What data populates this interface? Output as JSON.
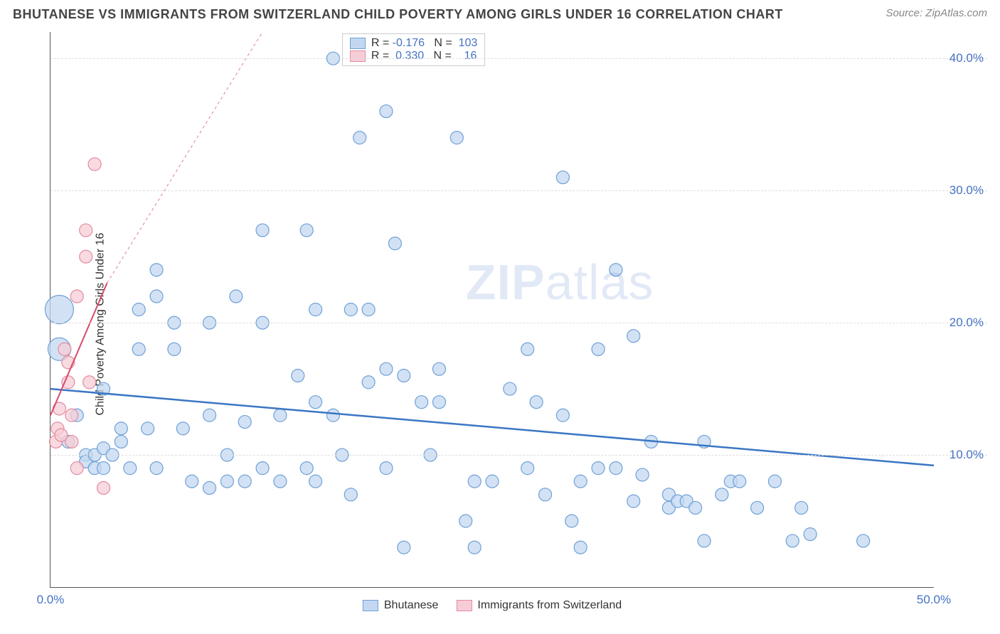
{
  "header": {
    "title": "BHUTANESE VS IMMIGRANTS FROM SWITZERLAND CHILD POVERTY AMONG GIRLS UNDER 16 CORRELATION CHART",
    "source": "Source: ZipAtlas.com"
  },
  "chart": {
    "type": "scatter",
    "ylabel": "Child Poverty Among Girls Under 16",
    "xlim": [
      0,
      50
    ],
    "ylim": [
      0,
      42
    ],
    "yticks": [
      10,
      20,
      30,
      40
    ],
    "ytick_labels": [
      "10.0%",
      "20.0%",
      "30.0%",
      "40.0%"
    ],
    "xticks": [
      0,
      50
    ],
    "xtick_labels": [
      "0.0%",
      "50.0%"
    ],
    "background_color": "#ffffff",
    "grid_color": "#dddddd",
    "watermark_text": "ZIPatlas",
    "watermark_color": "#4472c4",
    "series": [
      {
        "name": "Bhutanese",
        "marker_fill": "#c3d8f0",
        "marker_stroke": "#6fa0d8",
        "marker_opacity": 0.75,
        "marker_radius": 9,
        "line_color": "#3a76c4",
        "line_width": 2.5,
        "line_dash": "none",
        "trend": {
          "x1": 0,
          "y1": 15.0,
          "x2": 50,
          "y2": 9.2
        },
        "R": "-0.176",
        "N": "103",
        "points": [
          [
            0.5,
            21,
            20
          ],
          [
            0.5,
            18,
            16
          ],
          [
            1,
            11
          ],
          [
            1.5,
            13
          ],
          [
            2,
            10
          ],
          [
            2,
            9.5
          ],
          [
            2.5,
            10
          ],
          [
            2.5,
            9
          ],
          [
            3,
            15
          ],
          [
            3,
            10.5
          ],
          [
            3,
            9
          ],
          [
            3.5,
            10
          ],
          [
            4,
            12
          ],
          [
            4,
            11
          ],
          [
            4.5,
            9
          ],
          [
            5,
            21
          ],
          [
            5,
            18
          ],
          [
            5.5,
            12
          ],
          [
            6,
            24
          ],
          [
            6,
            22
          ],
          [
            6,
            9
          ],
          [
            7,
            20
          ],
          [
            7,
            18
          ],
          [
            7.5,
            12
          ],
          [
            8,
            8
          ],
          [
            9,
            20
          ],
          [
            9,
            13
          ],
          [
            9,
            7.5
          ],
          [
            10,
            10
          ],
          [
            10,
            8
          ],
          [
            10.5,
            22
          ],
          [
            11,
            8
          ],
          [
            11,
            12.5
          ],
          [
            12,
            20
          ],
          [
            12,
            27
          ],
          [
            12,
            9
          ],
          [
            13,
            8
          ],
          [
            13,
            13
          ],
          [
            14,
            16
          ],
          [
            14.5,
            27
          ],
          [
            14.5,
            9
          ],
          [
            15,
            21
          ],
          [
            15,
            14
          ],
          [
            15,
            8
          ],
          [
            16,
            40
          ],
          [
            16,
            13
          ],
          [
            16.5,
            10
          ],
          [
            17,
            21
          ],
          [
            17,
            7
          ],
          [
            17.5,
            34
          ],
          [
            18,
            21
          ],
          [
            18,
            15.5
          ],
          [
            19,
            16.5
          ],
          [
            19,
            36
          ],
          [
            19,
            9
          ],
          [
            19.5,
            26
          ],
          [
            20,
            16
          ],
          [
            20,
            3
          ],
          [
            21,
            14
          ],
          [
            21.5,
            10
          ],
          [
            22,
            16.5
          ],
          [
            22,
            14
          ],
          [
            23,
            34
          ],
          [
            23.5,
            5
          ],
          [
            24,
            8
          ],
          [
            24,
            3
          ],
          [
            25,
            8
          ],
          [
            26,
            15
          ],
          [
            27,
            18
          ],
          [
            27,
            9
          ],
          [
            27.5,
            14
          ],
          [
            28,
            7
          ],
          [
            29,
            31
          ],
          [
            29,
            13
          ],
          [
            29.5,
            5
          ],
          [
            30,
            8
          ],
          [
            30,
            3
          ],
          [
            31,
            18
          ],
          [
            31,
            9
          ],
          [
            32,
            24
          ],
          [
            32,
            9
          ],
          [
            33,
            19
          ],
          [
            33,
            6.5
          ],
          [
            33.5,
            8.5
          ],
          [
            34,
            11
          ],
          [
            35,
            6
          ],
          [
            35,
            7
          ],
          [
            35.5,
            6.5
          ],
          [
            36,
            6.5
          ],
          [
            36.5,
            6
          ],
          [
            37,
            11
          ],
          [
            37,
            3.5
          ],
          [
            38,
            7
          ],
          [
            38.5,
            8
          ],
          [
            39,
            8
          ],
          [
            40,
            6
          ],
          [
            41,
            8
          ],
          [
            42,
            3.5
          ],
          [
            42.5,
            6
          ],
          [
            43,
            4
          ],
          [
            46,
            3.5
          ]
        ]
      },
      {
        "name": "Immigrants from Switzerland",
        "marker_fill": "#f6cdd6",
        "marker_stroke": "#e38ba0",
        "marker_opacity": 0.75,
        "marker_radius": 9,
        "line_color": "#d84a6b",
        "line_width": 2,
        "line_dash": "none",
        "trend": {
          "x1": 0,
          "y1": 13.0,
          "x2": 3.2,
          "y2": 23
        },
        "trend_ext": {
          "x1": 3.2,
          "y1": 23,
          "x2": 12,
          "y2": 42,
          "dash": "4 4"
        },
        "R": "0.330",
        "N": "16",
        "points": [
          [
            0.3,
            11
          ],
          [
            0.4,
            12
          ],
          [
            0.5,
            13.5
          ],
          [
            0.6,
            11.5
          ],
          [
            0.8,
            18
          ],
          [
            1,
            15.5
          ],
          [
            1,
            17
          ],
          [
            1.2,
            13
          ],
          [
            1.2,
            11
          ],
          [
            1.5,
            22
          ],
          [
            1.5,
            9
          ],
          [
            2,
            25
          ],
          [
            2,
            27
          ],
          [
            2.2,
            15.5
          ],
          [
            2.5,
            32
          ],
          [
            3,
            7.5
          ]
        ]
      }
    ],
    "legend_top": {
      "rows": [
        {
          "swatch_fill": "#c3d8f0",
          "swatch_stroke": "#6fa0d8",
          "text_prefix": "R = ",
          "r": "-0.176",
          "text_mid": "   N =  ",
          "n": "103"
        },
        {
          "swatch_fill": "#f6cdd6",
          "swatch_stroke": "#e38ba0",
          "text_prefix": "R =  ",
          "r": "0.330",
          "text_mid": "   N =    ",
          "n": "16"
        }
      ]
    },
    "legend_bottom": [
      {
        "swatch_fill": "#c3d8f0",
        "swatch_stroke": "#6fa0d8",
        "label": "Bhutanese"
      },
      {
        "swatch_fill": "#f6cdd6",
        "swatch_stroke": "#e38ba0",
        "label": "Immigrants from Switzerland"
      }
    ]
  }
}
